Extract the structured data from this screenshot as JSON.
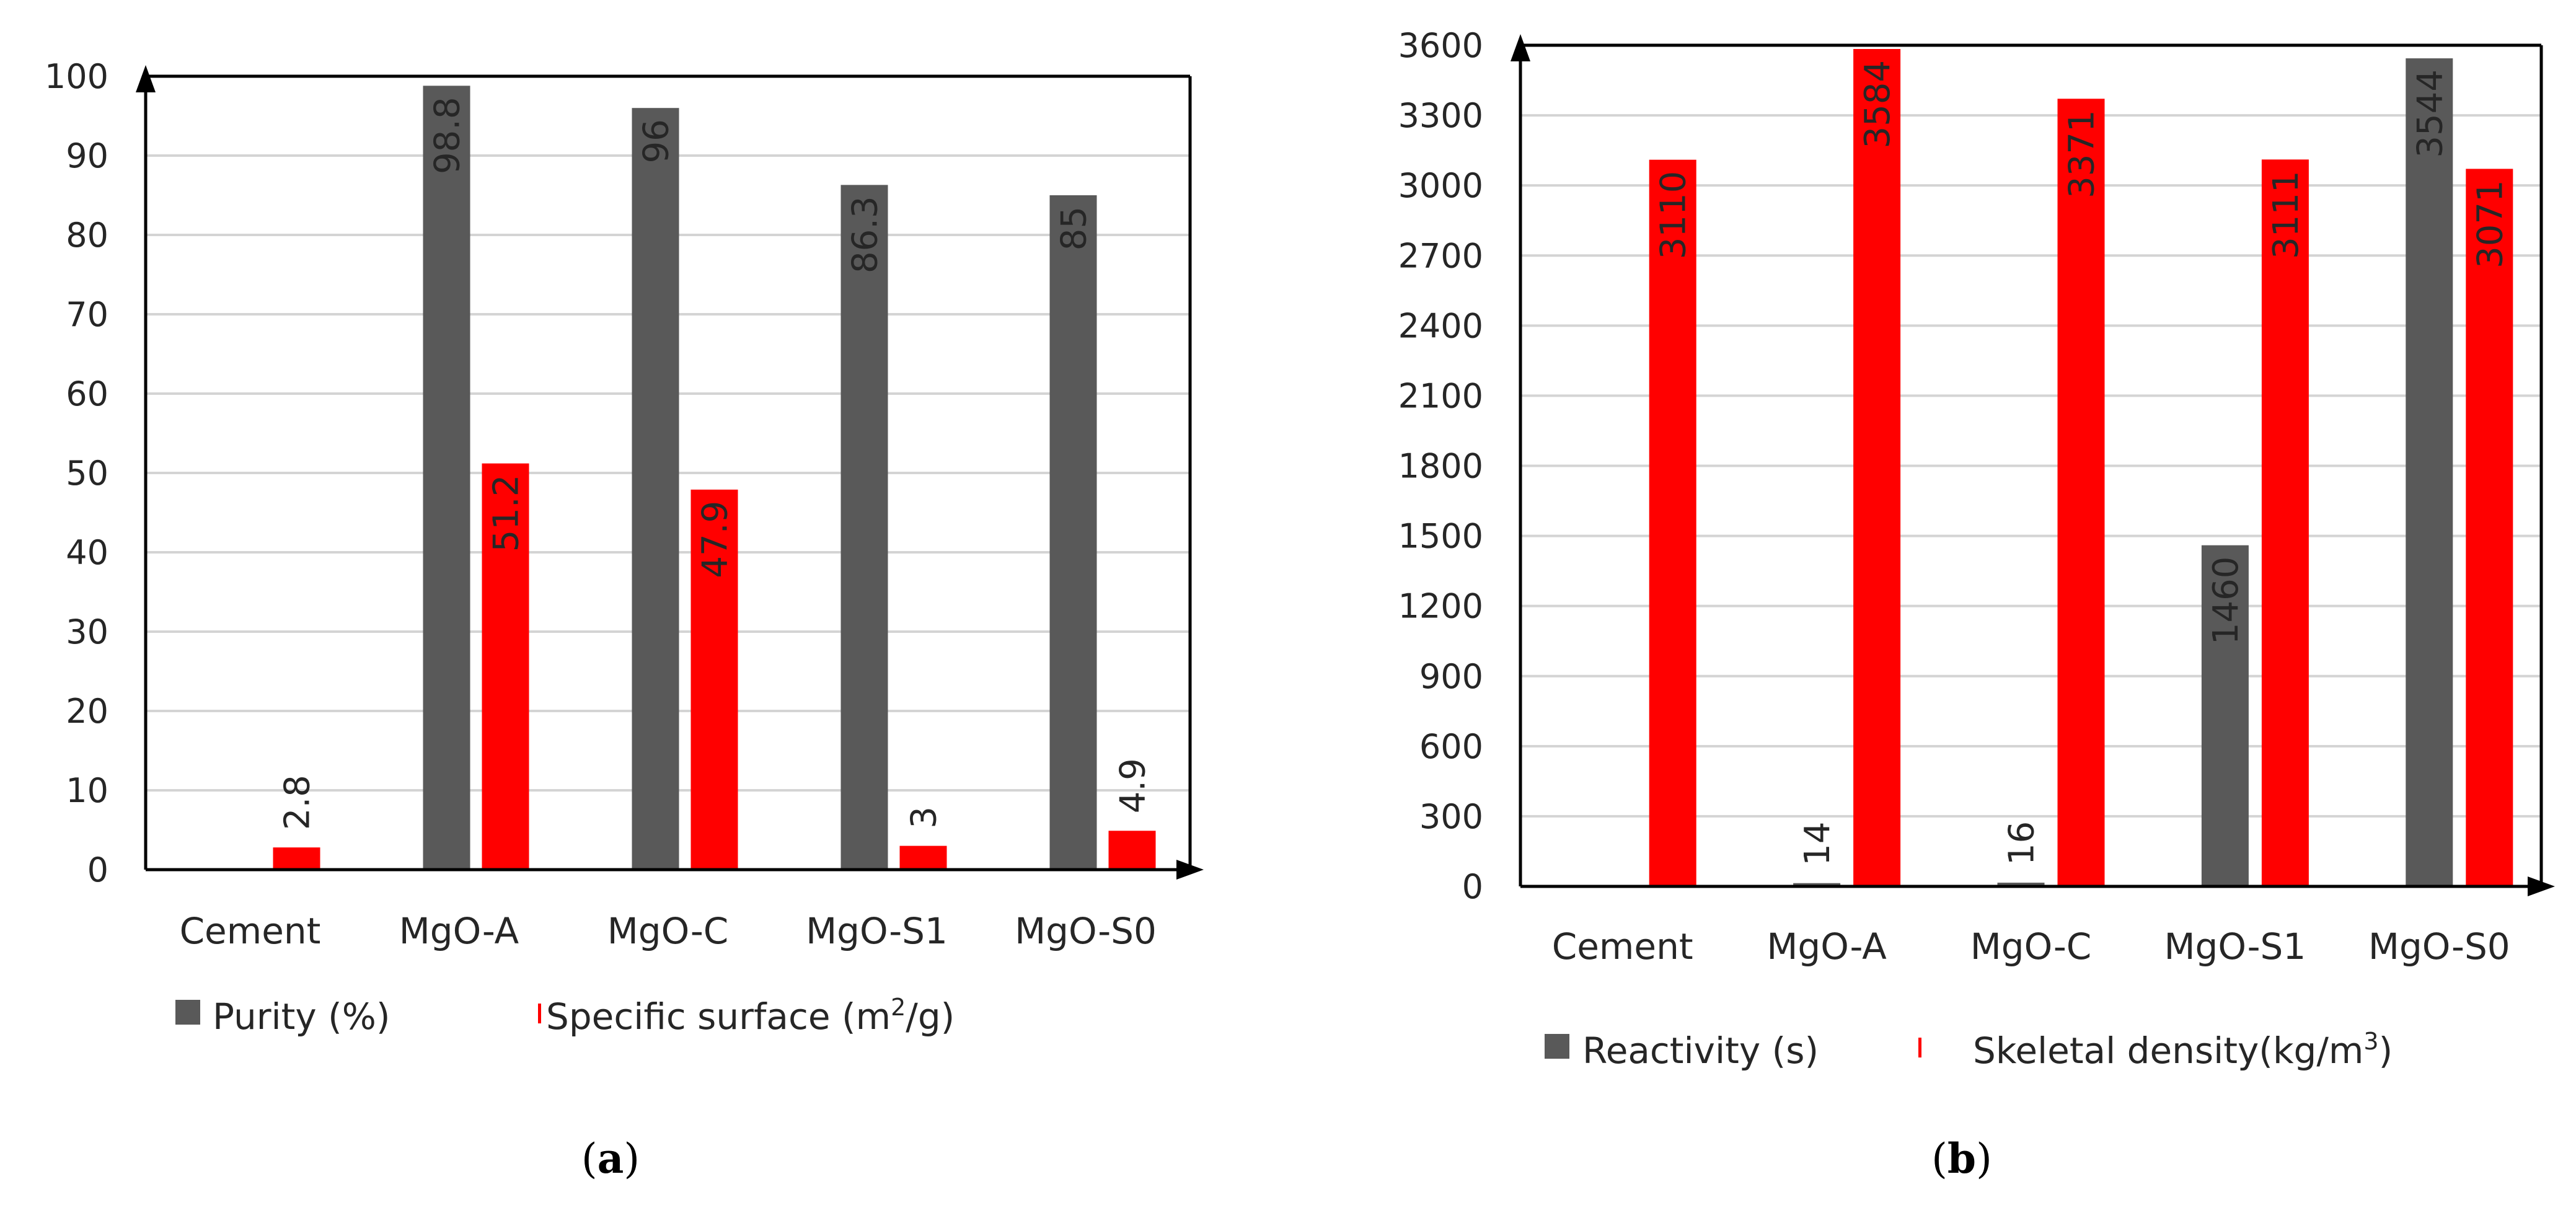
{
  "chart_data": [
    {
      "type": "bar",
      "panel_label": "a",
      "categories": [
        "Cement",
        "MgO-A",
        "MgO-C",
        "MgO-S1",
        "MgO-S0"
      ],
      "series": [
        {
          "name": "Purity (%)",
          "color": "#595959",
          "values": [
            null,
            98.8,
            96,
            86.3,
            85
          ],
          "labels": [
            "",
            "98.8",
            "96",
            "86.3",
            "85"
          ]
        },
        {
          "name": "Specific surface (m2/g)",
          "color": "#ff0000",
          "values": [
            2.8,
            51.2,
            47.9,
            3,
            4.9
          ],
          "labels": [
            "2.8",
            "51.2",
            "47.9",
            "3",
            "4.9"
          ]
        }
      ],
      "legend": [
        {
          "text": "Purity (%)"
        },
        {
          "text": "Specific surface (m",
          "sup": "2",
          "tail": "/g)"
        }
      ],
      "yticks": [
        "0",
        "10",
        "20",
        "30",
        "40",
        "50",
        "60",
        "70",
        "80",
        "90",
        "100"
      ],
      "ylim": [
        0,
        100
      ],
      "ystep": 10
    },
    {
      "type": "bar",
      "panel_label": "b",
      "categories": [
        "Cement",
        "MgO-A",
        "MgO-C",
        "MgO-S1",
        "MgO-S0"
      ],
      "series": [
        {
          "name": "Reactivity (s)",
          "color": "#595959",
          "values": [
            null,
            14,
            16,
            1460,
            3544
          ],
          "labels": [
            "",
            "14",
            "16",
            "1460",
            "3544"
          ]
        },
        {
          "name": "Skeletal density(kg/m3)",
          "color": "#ff0000",
          "values": [
            3110,
            3584,
            3371,
            3111,
            3071
          ],
          "labels": [
            "3110",
            "3584",
            "3371",
            "3111",
            "3071"
          ]
        }
      ],
      "legend": [
        {
          "text": "Reactivity (s)"
        },
        {
          "text": "Skeletal density(kg/m",
          "sup": "3",
          "tail": ")"
        }
      ],
      "yticks": [
        "0",
        "300",
        "600",
        "900",
        "1200",
        "1500",
        "1800",
        "2100",
        "2400",
        "2700",
        "3000",
        "3300",
        "3600"
      ],
      "ylim": [
        0,
        3600
      ],
      "ystep": 300
    }
  ]
}
